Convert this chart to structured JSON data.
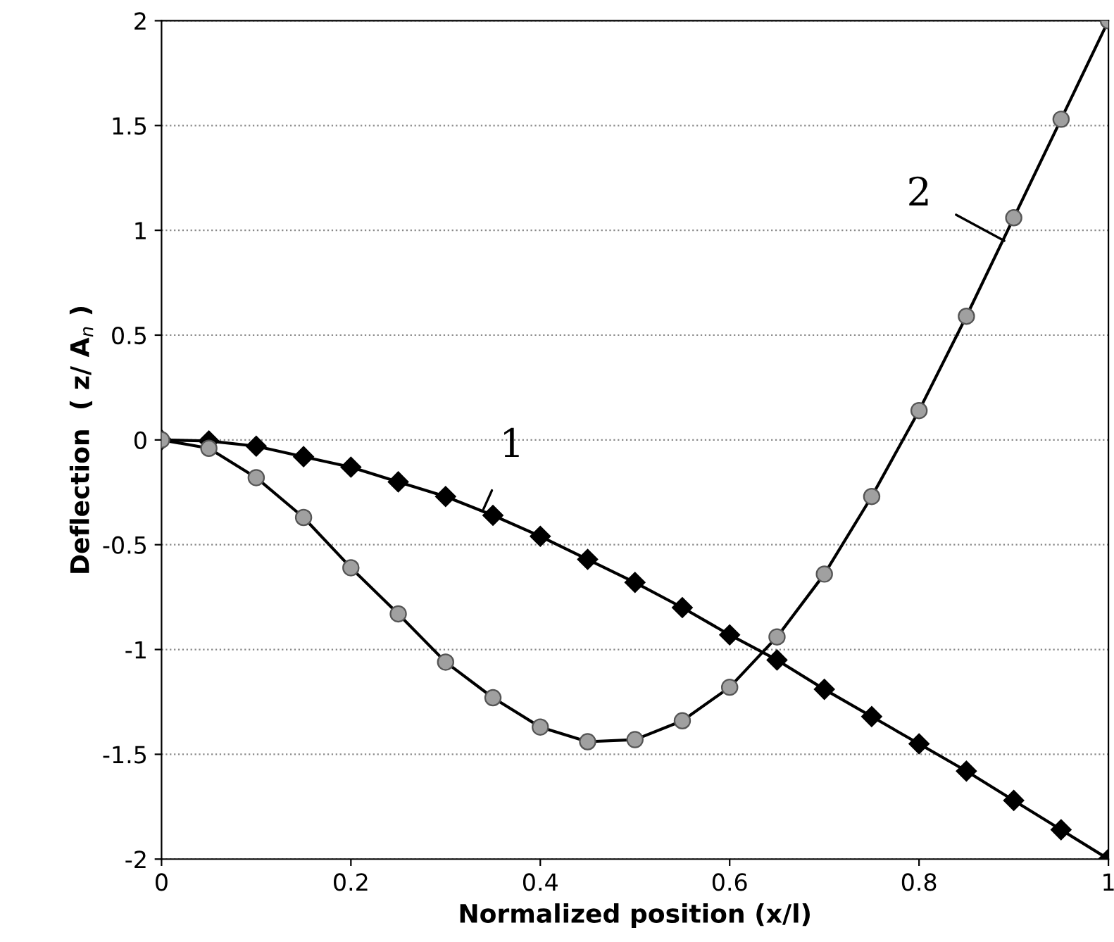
{
  "chart_data": {
    "type": "line",
    "xlabel": "Normalized position (x/l)",
    "ylabel": "Deflection  ( z/ A$_{n}$ )",
    "x": [
      0,
      0.05,
      0.1,
      0.15,
      0.2,
      0.25,
      0.3,
      0.35,
      0.4,
      0.45,
      0.5,
      0.55,
      0.6,
      0.65,
      0.7,
      0.75,
      0.8,
      0.85,
      0.9,
      0.95,
      1
    ],
    "series": [
      {
        "color": "#000000",
        "marker": "diamond",
        "values": [
          0,
          -0.005,
          -0.03,
          -0.08,
          -0.13,
          -0.2,
          -0.27,
          -0.36,
          -0.46,
          -0.57,
          -0.68,
          -0.8,
          -0.93,
          -1.05,
          -1.19,
          -1.32,
          -1.45,
          -1.58,
          -1.72,
          -1.86,
          -2.0
        ]
      },
      {
        "color": "#a0a0a0",
        "marker": "circle",
        "values": [
          0,
          -0.04,
          -0.18,
          -0.37,
          -0.61,
          -0.83,
          -1.06,
          -1.23,
          -1.37,
          -1.44,
          -1.43,
          -1.34,
          -1.18,
          -0.94,
          -0.64,
          -0.27,
          0.14,
          0.59,
          1.06,
          1.53,
          2.0
        ]
      }
    ],
    "xlim": [
      0,
      1
    ],
    "xticks": [
      0,
      0.2,
      0.4,
      0.6,
      0.8,
      1
    ],
    "ylim": [
      -2,
      2
    ],
    "yticks": [
      -2,
      -1.5,
      -1,
      -0.5,
      0,
      0.5,
      1,
      1.5,
      2
    ],
    "grid": "y",
    "legend": false,
    "annotations": [
      {
        "text": "1",
        "x": 0.34,
        "y": -0.33
      },
      {
        "text": "2",
        "x": 0.89,
        "y": 0.95
      }
    ]
  }
}
